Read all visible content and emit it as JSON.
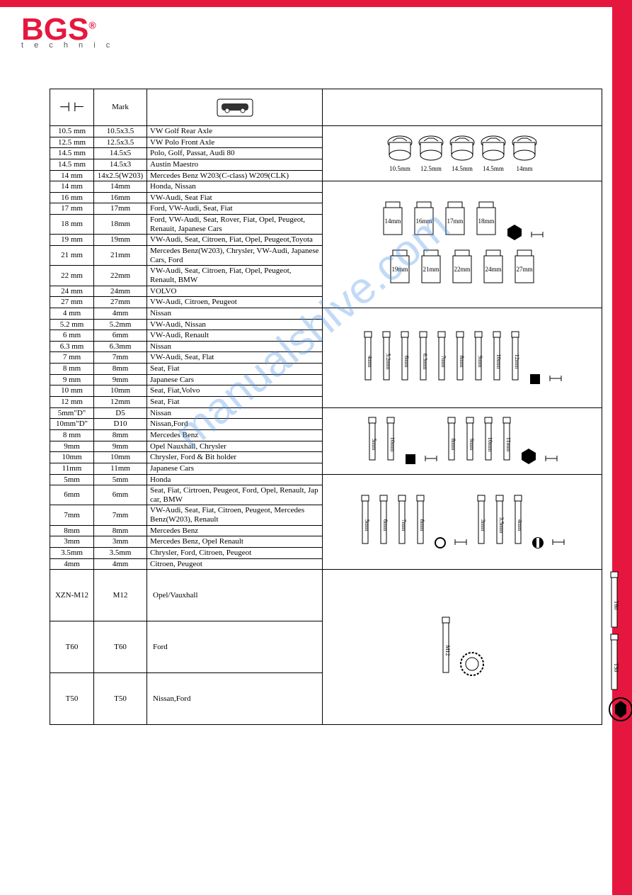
{
  "logo": {
    "main": "BGS",
    "reg": "®",
    "sub": "t e c h n i c"
  },
  "header": {
    "col2": "Mark"
  },
  "watermark": "manualshive.com",
  "diagrams": {
    "row1": [
      "10.5mm",
      "12.5mm",
      "14.5mm",
      "14.5mm",
      "14mm"
    ],
    "row2a": [
      "14mm",
      "16mm",
      "17mm",
      "18mm"
    ],
    "row2b": [
      "19mm",
      "21mm",
      "22mm",
      "24mm",
      "27mm"
    ],
    "row3": [
      "4mm",
      "5.2mm",
      "6mm",
      "6.3mm",
      "7mm",
      "8mm",
      "9mm",
      "10mm",
      "12mm"
    ],
    "row4": [
      "5mm",
      "10mm",
      "8mm",
      "9mm",
      "10mm",
      "11mm"
    ],
    "row5a": [
      "5mm",
      "6mm",
      "7mm",
      "8mm"
    ],
    "row5b": [
      "3mm",
      "3.5mm",
      "4mm"
    ],
    "row6a": [
      "M12"
    ],
    "row6b": [
      "T60",
      "T50"
    ]
  },
  "rows": [
    {
      "c1": "10.5 mm",
      "c2": "10.5x3.5",
      "c3": "VW Golf Rear Axle"
    },
    {
      "c1": "12.5 mm",
      "c2": "12.5x3.5",
      "c3": "VW Polo Front Axle"
    },
    {
      "c1": "14.5 mm",
      "c2": "14.5x5",
      "c3": "Polo, Golf, Passat, Audi 80"
    },
    {
      "c1": "14.5 mm",
      "c2": "14.5x3",
      "c3": "Austin Maestro"
    },
    {
      "c1": "14 mm",
      "c2": "14x2.5(W203)",
      "c3": "Mercedes Benz W203(C-class) W209(CLK)"
    },
    {
      "c1": "14 mm",
      "c2": "14mm",
      "c3": "Honda, Nissan"
    },
    {
      "c1": "16 mm",
      "c2": "16mm",
      "c3": "VW-Audi, Seat Fiat"
    },
    {
      "c1": "17 mm",
      "c2": "17mm",
      "c3": "Ford, VW-Audi, Seat, Fiat"
    },
    {
      "c1": "18 mm",
      "c2": "18mm",
      "c3": "Ford, VW-Audi, Seat, Rover, Fiat, Opel, Peugeot, Renauit, Japanese Cars"
    },
    {
      "c1": "19 mm",
      "c2": "19mm",
      "c3": "VW-Audi, Seat, Citroen, Fiat, Opel, Peugeot,Toyota"
    },
    {
      "c1": "21 mm",
      "c2": "21mm",
      "c3": "Mercedes Benz(W203), Chrysler, VW-Audi, Japanese  Cars, Ford"
    },
    {
      "c1": "22 mm",
      "c2": "22mm",
      "c3": "VW-Audi, Seat, Citroen, Fiat,  Opel, Peugeot, Renault, BMW"
    },
    {
      "c1": "24 mm",
      "c2": "24mm",
      "c3": "VOLVO"
    },
    {
      "c1": "27 mm",
      "c2": "27mm",
      "c3": "VW-Audi, Citroen, Peugeot"
    },
    {
      "c1": "4 mm",
      "c2": "4mm",
      "c3": "Nissan"
    },
    {
      "c1": "5.2 mm",
      "c2": "5.2mm",
      "c3": "VW-Audi, Nissan"
    },
    {
      "c1": "6 mm",
      "c2": "6mm",
      "c3": "VW-Audi, Renault"
    },
    {
      "c1": "6.3 mm",
      "c2": "6.3mm",
      "c3": "Nissan"
    },
    {
      "c1": "7 mm",
      "c2": "7mm",
      "c3": "VW-Audi, Seat, Flat"
    },
    {
      "c1": "8 mm",
      "c2": "8mm",
      "c3": "Seat, Fiat"
    },
    {
      "c1": "9 mm",
      "c2": "9mm",
      "c3": "Japanese Cars"
    },
    {
      "c1": "10 mm",
      "c2": "10mm",
      "c3": "Seat, Fiat,Volvo"
    },
    {
      "c1": "12 mm",
      "c2": "12mm",
      "c3": "Seat, Fiat"
    },
    {
      "c1": "5mm\"D\"",
      "c2": "D5",
      "c3": "Nissan"
    },
    {
      "c1": "10mm\"D\"",
      "c2": "D10",
      "c3": "Nissan,Ford"
    },
    {
      "c1": "8 mm",
      "c2": "8mm",
      "c3": "Mercedes Benz"
    },
    {
      "c1": "9mm",
      "c2": "9mm",
      "c3": "Opel Nauxhall, Chrysler"
    },
    {
      "c1": "10mm",
      "c2": "10mm",
      "c3": "Chrysler, Ford & Bit holder"
    },
    {
      "c1": "11mm",
      "c2": "11mm",
      "c3": "Japanese Cars"
    },
    {
      "c1": "5mm",
      "c2": "5mm",
      "c3": "Honda"
    },
    {
      "c1": "6mm",
      "c2": "6mm",
      "c3": "Seat, Fiat, Cirtroen, Peugeot, Ford, Opel, Renault, Jap car, BMW"
    },
    {
      "c1": "7mm",
      "c2": "7mm",
      "c3": "VW-Audi, Seat, Fiat, Citroen, Peugeot, Mercedes Benz(W203), Renault"
    },
    {
      "c1": "8mm",
      "c2": "8mm",
      "c3": "Mercedes Benz"
    },
    {
      "c1": "3mm",
      "c2": "3mm",
      "c3": "Mercedes Benz, Opel Renault"
    },
    {
      "c1": "3.5mm",
      "c2": "3.5mm",
      "c3": "Chrysler, Ford, Citroen, Peugeot"
    },
    {
      "c1": "4mm",
      "c2": "4mm",
      "c3": "Citroen, Peugeot"
    }
  ],
  "bigrows": [
    {
      "c1": "XZN-M12",
      "c2": "M12",
      "c3": "Opel/Vauxhall"
    },
    {
      "c1": "T60",
      "c2": "T60",
      "c3": "Ford"
    },
    {
      "c1": "T50",
      "c2": "T50",
      "c3": "Nissan,Ford"
    }
  ]
}
